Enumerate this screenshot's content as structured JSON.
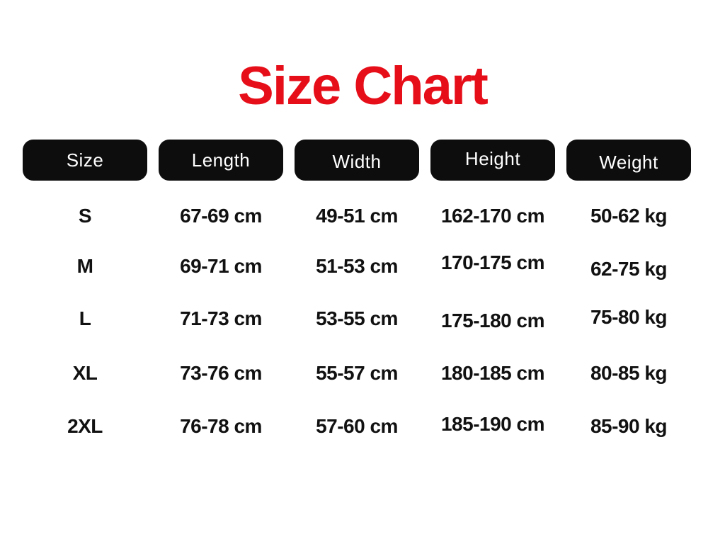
{
  "title": {
    "text": "Size Chart"
  },
  "colors": {
    "background": "#ffffff",
    "title-color": "#e60e19",
    "header-pill-bg": "#0d0d0d",
    "header-pill-text": "#ffffff",
    "cell-text": "#111111"
  },
  "chart_data": {
    "type": "table",
    "title": "Size Chart",
    "columns": [
      "Size",
      "Length",
      "Width",
      "Height",
      "Weight"
    ],
    "rows": [
      [
        "S",
        "67-69 cm",
        "49-51 cm",
        "162-170 cm",
        "50-62 kg"
      ],
      [
        "M",
        "69-71 cm",
        "51-53 cm",
        "170-175 cm",
        "62-75 kg"
      ],
      [
        "L",
        "71-73 cm",
        "53-55 cm",
        "175-180 cm",
        "75-80 kg"
      ],
      [
        "XL",
        "73-76 cm",
        "55-57 cm",
        "180-185 cm",
        "80-85 kg"
      ],
      [
        "2XL",
        "76-78 cm",
        "57-60 cm",
        "185-190 cm",
        "85-90 kg"
      ]
    ]
  }
}
